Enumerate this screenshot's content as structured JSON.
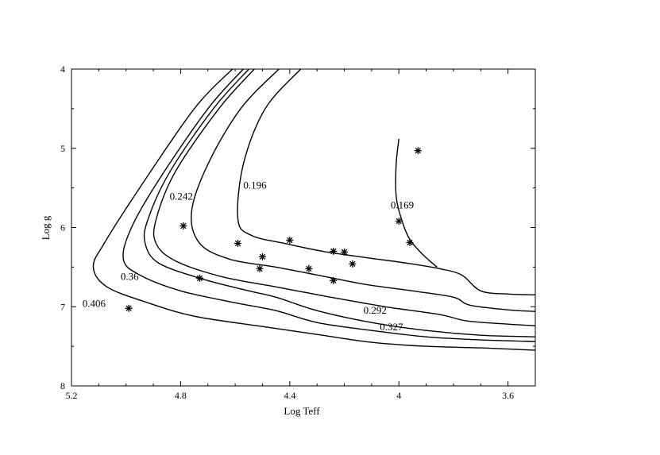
{
  "chart_data": {
    "type": "line",
    "title": "",
    "xlabel": "Log Teff",
    "ylabel": "Log g",
    "xlim": [
      5.2,
      3.5
    ],
    "ylim": [
      4,
      8
    ],
    "x_reversed": true,
    "y_reversed": true,
    "x_ticks": [
      5.2,
      4.8,
      4.4,
      4.0,
      3.6
    ],
    "x_tick_labels": [
      "5.2",
      "4.8",
      "4.4",
      "4",
      "3.6"
    ],
    "y_ticks": [
      4,
      5,
      6,
      7,
      8
    ],
    "y_tick_labels": [
      "4",
      "5",
      "6",
      "7",
      "8"
    ],
    "grid": false,
    "series": [
      {
        "name": "0.406",
        "points": [
          [
            4.61,
            4.0
          ],
          [
            4.75,
            4.5
          ],
          [
            4.95,
            5.5
          ],
          [
            5.08,
            6.2
          ],
          [
            5.12,
            6.5
          ],
          [
            5.07,
            6.75
          ],
          [
            4.92,
            6.95
          ],
          [
            4.75,
            7.12
          ],
          [
            4.5,
            7.25
          ],
          [
            4.3,
            7.35
          ],
          [
            4.1,
            7.45
          ],
          [
            3.9,
            7.5
          ],
          [
            3.7,
            7.52
          ],
          [
            3.5,
            7.55
          ]
        ]
      },
      {
        "name": "0.36",
        "points": [
          [
            4.57,
            4.0
          ],
          [
            4.7,
            4.5
          ],
          [
            4.88,
            5.4
          ],
          [
            4.98,
            6.0
          ],
          [
            5.01,
            6.4
          ],
          [
            4.95,
            6.6
          ],
          [
            4.8,
            6.8
          ],
          [
            4.6,
            6.95
          ],
          [
            4.45,
            7.05
          ],
          [
            4.3,
            7.2
          ],
          [
            4.1,
            7.3
          ],
          [
            3.9,
            7.38
          ],
          [
            3.7,
            7.42
          ],
          [
            3.5,
            7.44
          ]
        ]
      },
      {
        "name": "0.327",
        "points": [
          [
            4.55,
            4.0
          ],
          [
            4.68,
            4.5
          ],
          [
            4.84,
            5.3
          ],
          [
            4.92,
            5.9
          ],
          [
            4.93,
            6.2
          ],
          [
            4.88,
            6.45
          ],
          [
            4.72,
            6.65
          ],
          [
            4.55,
            6.8
          ],
          [
            4.45,
            6.88
          ],
          [
            4.3,
            7.05
          ],
          [
            4.1,
            7.2
          ],
          [
            3.9,
            7.3
          ],
          [
            3.7,
            7.36
          ],
          [
            3.5,
            7.38
          ]
        ]
      },
      {
        "name": "0.292",
        "points": [
          [
            4.53,
            4.0
          ],
          [
            4.66,
            4.5
          ],
          [
            4.82,
            5.3
          ],
          [
            4.89,
            5.9
          ],
          [
            4.89,
            6.2
          ],
          [
            4.82,
            6.42
          ],
          [
            4.65,
            6.62
          ],
          [
            4.45,
            6.75
          ],
          [
            4.25,
            6.88
          ],
          [
            4.05,
            7.0
          ],
          [
            3.85,
            7.1
          ],
          [
            3.75,
            7.18
          ],
          [
            3.6,
            7.22
          ],
          [
            3.5,
            7.24
          ]
        ]
      },
      {
        "name": "0.242",
        "points": [
          [
            4.44,
            4.0
          ],
          [
            4.58,
            4.5
          ],
          [
            4.7,
            5.2
          ],
          [
            4.76,
            5.8
          ],
          [
            4.73,
            6.2
          ],
          [
            4.62,
            6.4
          ],
          [
            4.45,
            6.5
          ],
          [
            4.3,
            6.6
          ],
          [
            4.12,
            6.72
          ],
          [
            3.95,
            6.8
          ],
          [
            3.8,
            6.88
          ],
          [
            3.74,
            6.98
          ],
          [
            3.6,
            7.04
          ],
          [
            3.5,
            7.06
          ]
        ]
      },
      {
        "name": "0.196",
        "points": [
          [
            4.36,
            4.0
          ],
          [
            4.49,
            4.5
          ],
          [
            4.57,
            5.2
          ],
          [
            4.59,
            5.9
          ],
          [
            4.54,
            6.1
          ],
          [
            4.42,
            6.2
          ],
          [
            4.28,
            6.3
          ],
          [
            4.12,
            6.38
          ],
          [
            3.97,
            6.45
          ],
          [
            3.85,
            6.52
          ],
          [
            3.77,
            6.6
          ],
          [
            3.7,
            6.8
          ],
          [
            3.6,
            6.84
          ],
          [
            3.5,
            6.85
          ]
        ]
      },
      {
        "name": "0.169",
        "points": [
          [
            4.0,
            4.88
          ],
          [
            4.01,
            5.2
          ],
          [
            4.01,
            5.6
          ],
          [
            3.99,
            5.9
          ],
          [
            3.96,
            6.15
          ],
          [
            3.91,
            6.35
          ],
          [
            3.86,
            6.5
          ]
        ]
      }
    ],
    "stars": [
      {
        "x": 4.99,
        "y": 7.02
      },
      {
        "x": 4.79,
        "y": 5.98
      },
      {
        "x": 4.73,
        "y": 6.64
      },
      {
        "x": 4.59,
        "y": 6.2
      },
      {
        "x": 4.5,
        "y": 6.37
      },
      {
        "x": 4.51,
        "y": 6.52
      },
      {
        "x": 4.4,
        "y": 6.16
      },
      {
        "x": 4.33,
        "y": 6.52
      },
      {
        "x": 4.24,
        "y": 6.3
      },
      {
        "x": 4.2,
        "y": 6.31
      },
      {
        "x": 4.17,
        "y": 6.46
      },
      {
        "x": 4.24,
        "y": 6.67
      },
      {
        "x": 3.93,
        "y": 5.03
      },
      {
        "x": 4.0,
        "y": 5.92
      },
      {
        "x": 3.96,
        "y": 6.19
      }
    ],
    "curve_labels": [
      {
        "text": "0.406",
        "x": 5.16,
        "y": 6.96
      },
      {
        "text": "0.36",
        "x": 5.02,
        "y": 6.62
      },
      {
        "text": "0.327",
        "x": 4.07,
        "y": 7.26
      },
      {
        "text": "0.292",
        "x": 4.13,
        "y": 7.05
      },
      {
        "text": "0.242",
        "x": 4.84,
        "y": 5.61
      },
      {
        "text": "0.196",
        "x": 4.57,
        "y": 5.47
      },
      {
        "text": "0.169",
        "x": 4.03,
        "y": 5.72
      }
    ]
  }
}
